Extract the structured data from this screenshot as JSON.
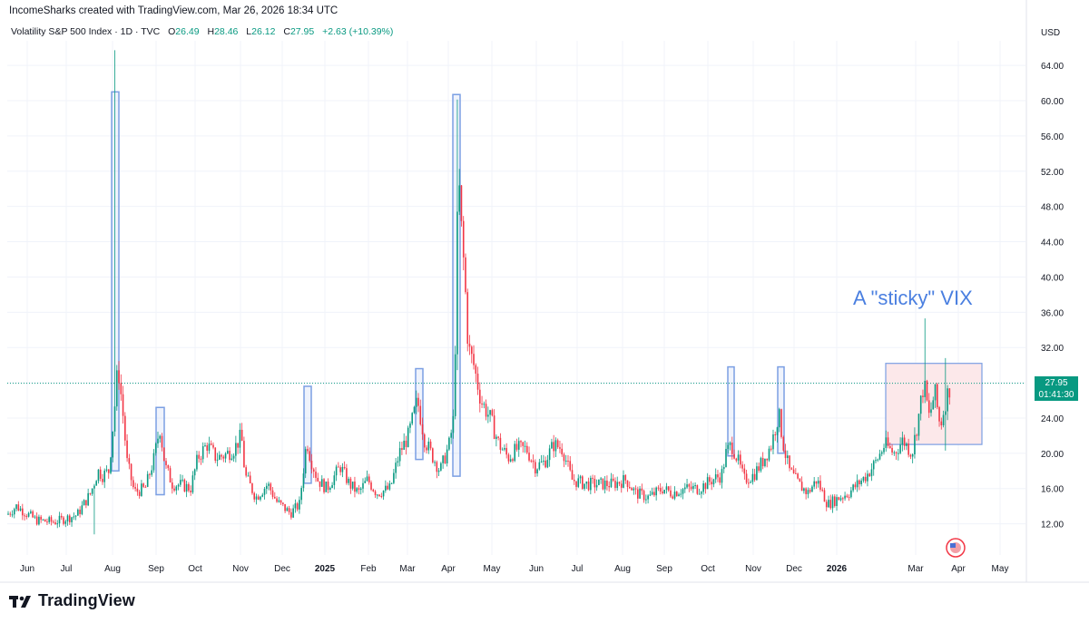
{
  "header": {
    "text": "IncomeSharks created with TradingView.com, Mar 26, 2026 18:34 UTC"
  },
  "legend": {
    "symbol": "Volatility S&P 500 Index · 1D · TVC",
    "open_label": "O",
    "open": "26.49",
    "high_label": "H",
    "high": "28.46",
    "low_label": "L",
    "low": "26.12",
    "close_label": "C",
    "close": "27.95",
    "change": "+2.63 (+10.39%)"
  },
  "currency": "USD",
  "price_tag": {
    "price": "27.95",
    "countdown": "01:41:30"
  },
  "annotation": "A \"sticky\" VIX",
  "brand": {
    "name": "TradingView",
    "logo": "tradingview-logo-icon"
  },
  "colors": {
    "up": "#089981",
    "down": "#f23645",
    "annotation": "#4a7fe0",
    "box_blue": "#7b9fe3",
    "box_red_fill": "#fce8ea"
  },
  "chart_data": {
    "type": "candlestick",
    "y_axis": {
      "ticks": [
        12.0,
        16.0,
        20.0,
        24.0,
        28.0,
        32.0,
        36.0,
        40.0,
        44.0,
        48.0,
        52.0,
        56.0,
        60.0,
        64.0
      ],
      "range": [
        9,
        66
      ]
    },
    "x_axis": {
      "labels": [
        {
          "t": "Jun",
          "bold": false
        },
        {
          "t": "Jul",
          "bold": false
        },
        {
          "t": "Aug",
          "bold": false
        },
        {
          "t": "Sep",
          "bold": false
        },
        {
          "t": "Oct",
          "bold": false
        },
        {
          "t": "Nov",
          "bold": false
        },
        {
          "t": "Dec",
          "bold": false
        },
        {
          "t": "2025",
          "bold": true
        },
        {
          "t": "Feb",
          "bold": false
        },
        {
          "t": "Mar",
          "bold": false
        },
        {
          "t": "Apr",
          "bold": false
        },
        {
          "t": "May",
          "bold": false
        },
        {
          "t": "Jun",
          "bold": false
        },
        {
          "t": "Jul",
          "bold": false
        },
        {
          "t": "Aug",
          "bold": false
        },
        {
          "t": "Sep",
          "bold": false
        },
        {
          "t": "Oct",
          "bold": false
        },
        {
          "t": "Nov",
          "bold": false
        },
        {
          "t": "Dec",
          "bold": false
        },
        {
          "t": "2026",
          "bold": true
        },
        {
          "t": "Mar",
          "bold": false
        },
        {
          "t": "Apr",
          "bold": false
        },
        {
          "t": "May",
          "bold": false
        }
      ]
    },
    "current_price_line": 27.95,
    "spikes": [
      {
        "label": "Aug 2024",
        "high": 65.73,
        "low": 15.9
      },
      {
        "label": "Apr 2025",
        "high": 60.13,
        "low": 16.8
      },
      {
        "label": "Mar 2026",
        "high": 35.3,
        "low": 21.0
      }
    ],
    "highlight_boxes": [
      {
        "period": "Aug 2024",
        "top": 61.0,
        "bottom": 18.0,
        "style": "blue"
      },
      {
        "period": "Sep 2024",
        "top": 25.2,
        "bottom": 15.3,
        "style": "blue"
      },
      {
        "period": "Dec 2024",
        "top": 27.6,
        "bottom": 16.6,
        "style": "blue"
      },
      {
        "period": "Mar 2025",
        "top": 29.6,
        "bottom": 19.3,
        "style": "blue"
      },
      {
        "period": "Apr 2025",
        "top": 60.7,
        "bottom": 17.4,
        "style": "blue"
      },
      {
        "period": "Oct 2025",
        "top": 29.8,
        "bottom": 19.7,
        "style": "blue"
      },
      {
        "period": "Nov 2025",
        "top": 29.8,
        "bottom": 20.0,
        "style": "blue"
      },
      {
        "period": "Feb-Apr 2026",
        "top": 30.2,
        "bottom": 21.0,
        "style": "red"
      }
    ],
    "anchors": [
      [
        0,
        12.3
      ],
      [
        18,
        14.0
      ],
      [
        40,
        12.4
      ],
      [
        60,
        12.2
      ],
      [
        85,
        13.0
      ],
      [
        100,
        15.5
      ],
      [
        108,
        18.0
      ],
      [
        113,
        17.5
      ],
      [
        120,
        18.0
      ],
      [
        127,
        26.0
      ],
      [
        130,
        30.0
      ],
      [
        135,
        25.0
      ],
      [
        140,
        19.0
      ],
      [
        148,
        15.6
      ],
      [
        160,
        16.0
      ],
      [
        170,
        19.5
      ],
      [
        176,
        23.0
      ],
      [
        182,
        18.5
      ],
      [
        190,
        16.5
      ],
      [
        200,
        16.4
      ],
      [
        210,
        16.0
      ],
      [
        218,
        19.5
      ],
      [
        228,
        21.0
      ],
      [
        238,
        19.5
      ],
      [
        248,
        19.8
      ],
      [
        258,
        20.5
      ],
      [
        266,
        22.0
      ],
      [
        270,
        17.5
      ],
      [
        282,
        15.0
      ],
      [
        295,
        16.5
      ],
      [
        305,
        14.5
      ],
      [
        320,
        13.2
      ],
      [
        330,
        14.2
      ],
      [
        338,
        21.5
      ],
      [
        342,
        19.5
      ],
      [
        350,
        17.0
      ],
      [
        360,
        16.0
      ],
      [
        375,
        18.5
      ],
      [
        385,
        16.5
      ],
      [
        395,
        15.5
      ],
      [
        405,
        17.0
      ],
      [
        415,
        15.5
      ],
      [
        430,
        16.0
      ],
      [
        440,
        20.0
      ],
      [
        450,
        22.0
      ],
      [
        460,
        26.0
      ],
      [
        468,
        21.5
      ],
      [
        475,
        20.0
      ],
      [
        485,
        18.0
      ],
      [
        495,
        21.0
      ],
      [
        500,
        24.0
      ],
      [
        502,
        34.0
      ],
      [
        505,
        52.0
      ],
      [
        508,
        46.0
      ],
      [
        512,
        40.0
      ],
      [
        516,
        32.0
      ],
      [
        522,
        30.0
      ],
      [
        530,
        26.0
      ],
      [
        540,
        24.0
      ],
      [
        550,
        21.0
      ],
      [
        560,
        19.5
      ],
      [
        570,
        20.5
      ],
      [
        580,
        20.5
      ],
      [
        590,
        18.5
      ],
      [
        600,
        19.0
      ],
      [
        610,
        21.0
      ],
      [
        620,
        20.5
      ],
      [
        630,
        17.0
      ],
      [
        645,
        16.5
      ],
      [
        660,
        16.5
      ],
      [
        675,
        16.5
      ],
      [
        690,
        17.0
      ],
      [
        700,
        15.5
      ],
      [
        715,
        15.0
      ],
      [
        730,
        16.0
      ],
      [
        740,
        15.5
      ],
      [
        755,
        16.0
      ],
      [
        770,
        16.0
      ],
      [
        785,
        17.0
      ],
      [
        795,
        17.5
      ],
      [
        800,
        20.0
      ],
      [
        806,
        21.0
      ],
      [
        812,
        19.5
      ],
      [
        820,
        17.0
      ],
      [
        830,
        17.5
      ],
      [
        840,
        19.0
      ],
      [
        850,
        21.0
      ],
      [
        858,
        24.5
      ],
      [
        864,
        20.5
      ],
      [
        870,
        18.0
      ],
      [
        880,
        16.5
      ],
      [
        890,
        15.5
      ],
      [
        900,
        17.0
      ],
      [
        912,
        14.2
      ],
      [
        925,
        15.0
      ],
      [
        935,
        15.5
      ],
      [
        945,
        16.5
      ],
      [
        955,
        17.5
      ],
      [
        965,
        19.0
      ],
      [
        975,
        21.0
      ],
      [
        985,
        20.0
      ],
      [
        995,
        21.5
      ],
      [
        1005,
        20.0
      ],
      [
        1012,
        24.0
      ],
      [
        1018,
        28.0
      ],
      [
        1024,
        24.0
      ],
      [
        1030,
        27.0
      ],
      [
        1036,
        23.0
      ],
      [
        1042,
        26.0
      ],
      [
        1048,
        27.95
      ]
    ]
  }
}
